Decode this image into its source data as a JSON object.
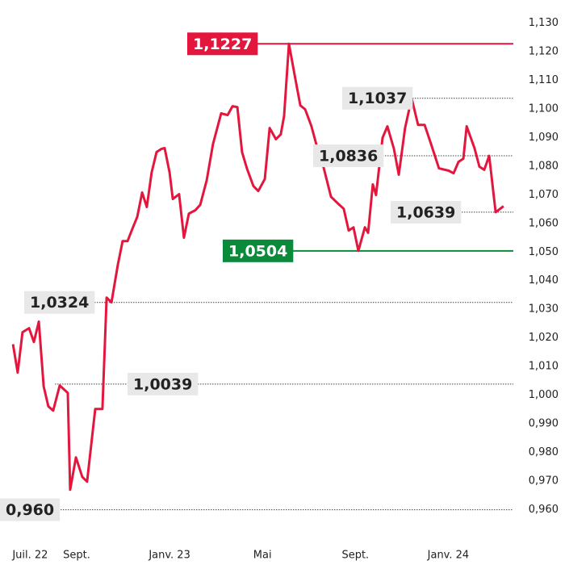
{
  "chart_data": {
    "type": "line",
    "color": "#e3173e",
    "x": [
      -0.74,
      -0.54,
      -0.33,
      -0.05,
      0.16,
      0.37,
      0.58,
      0.78,
      0.99,
      1.27,
      1.62,
      1.72,
      1.97,
      2.24,
      2.45,
      2.8,
      3.11,
      3.29,
      3.5,
      3.77,
      3.98,
      4.19,
      4.4,
      4.61,
      4.82,
      5.02,
      5.23,
      5.44,
      5.65,
      5.79,
      6.0,
      6.14,
      6.41,
      6.62,
      6.83,
      7.11,
      7.32,
      7.6,
      7.87,
      8.22,
      8.5,
      8.71,
      8.92,
      9.12,
      9.33,
      9.61,
      9.82,
      10.1,
      10.31,
      10.58,
      10.79,
      10.93,
      11.14,
      11.42,
      11.63,
      11.84,
      12.11,
      12.39,
      12.6,
      12.95,
      13.23,
      13.5,
      13.71,
      13.92,
      14.13,
      14.41,
      14.55,
      14.75,
      14.89,
      15.17,
      15.38,
      15.66,
      15.87,
      16.14,
      16.42,
      16.7,
      16.98,
      17.26,
      17.6,
      18.02,
      18.23,
      18.44,
      18.65,
      18.79,
      19.13,
      19.34,
      19.55,
      19.76,
      20.04,
      20.38
    ],
    "values": [
      1.0178,
      1.0079,
      1.022,
      1.0234,
      1.0186,
      1.0257,
      1.0031,
      0.9961,
      0.9946,
      1.0034,
      1.0008,
      0.967,
      0.9783,
      0.9715,
      0.9698,
      0.9952,
      0.9952,
      1.0341,
      1.0324,
      1.0454,
      1.0538,
      1.0538,
      1.0581,
      1.0623,
      1.0708,
      1.0657,
      1.0778,
      1.0849,
      1.086,
      1.0863,
      1.0778,
      1.0685,
      1.0702,
      1.055,
      1.0634,
      1.0646,
      1.0665,
      1.075,
      1.0877,
      1.0984,
      1.0978,
      1.1009,
      1.1006,
      1.0849,
      1.0792,
      1.073,
      1.0713,
      1.0755,
      1.0933,
      1.0894,
      1.0911,
      1.0975,
      1.1227,
      1.1102,
      1.1012,
      1.0998,
      1.0939,
      1.0854,
      1.0806,
      1.0693,
      1.0671,
      1.0651,
      1.0575,
      1.0586,
      1.0504,
      1.0586,
      1.0567,
      1.0736,
      1.0699,
      1.0899,
      1.0939,
      1.086,
      1.077,
      1.0933,
      1.1037,
      1.0944,
      1.0944,
      1.0877,
      1.0792,
      1.0784,
      1.0775,
      1.0815,
      1.0826,
      1.0939,
      1.0863,
      1.0798,
      1.0787,
      1.0836,
      1.0639,
      1.066
    ],
    "xlim": [
      -1.3,
      20.8
    ],
    "xticks": [
      {
        "value": 0,
        "label": "Juil. 22"
      },
      {
        "value": 2,
        "label": "Sept."
      },
      {
        "value": 6,
        "label": "Janv. 23"
      },
      {
        "value": 10,
        "label": "Mai"
      },
      {
        "value": 14,
        "label": "Sept."
      },
      {
        "value": 18,
        "label": "Janv. 24"
      }
    ],
    "ylim": [
      0.952,
      1.138
    ],
    "yticks": [
      {
        "value": 0.96,
        "label": "0,960"
      },
      {
        "value": 0.97,
        "label": "0,970"
      },
      {
        "value": 0.98,
        "label": "0,980"
      },
      {
        "value": 0.99,
        "label": "0,990"
      },
      {
        "value": 1.0,
        "label": "1,000"
      },
      {
        "value": 1.01,
        "label": "1,010"
      },
      {
        "value": 1.02,
        "label": "1,020"
      },
      {
        "value": 1.03,
        "label": "1,030"
      },
      {
        "value": 1.04,
        "label": "1,040"
      },
      {
        "value": 1.05,
        "label": "1,050"
      },
      {
        "value": 1.06,
        "label": "1,060"
      },
      {
        "value": 1.07,
        "label": "1,070"
      },
      {
        "value": 1.08,
        "label": "1,080"
      },
      {
        "value": 1.09,
        "label": "1,090"
      },
      {
        "value": 1.1,
        "label": "1,100"
      },
      {
        "value": 1.11,
        "label": "1,110"
      },
      {
        "value": 1.12,
        "label": "1,120"
      },
      {
        "value": 1.13,
        "label": "1,130"
      }
    ],
    "annotations": [
      {
        "value": 1.1227,
        "label": "1,1227",
        "color": "#e3173e",
        "style": "solid"
      },
      {
        "value": 1.0504,
        "label": "1,0504",
        "color": "#0b8a3c",
        "style": "solid"
      },
      {
        "value": 1.0324,
        "label": "1,0324",
        "color": "#e8e8e8",
        "style": "dotted"
      },
      {
        "value": 1.0039,
        "label": "1,0039",
        "color": "#e8e8e8",
        "style": "dotted"
      },
      {
        "value": 0.96,
        "label": "0,960",
        "color": "#e8e8e8",
        "style": "dotted"
      },
      {
        "value": 1.1037,
        "label": "1,1037",
        "color": "#e8e8e8",
        "style": "dotted"
      },
      {
        "value": 1.0836,
        "label": "1,0836",
        "color": "#e8e8e8",
        "style": "dotted"
      },
      {
        "value": 1.0639,
        "label": "1,0639",
        "color": "#e8e8e8",
        "style": "dotted"
      }
    ]
  }
}
